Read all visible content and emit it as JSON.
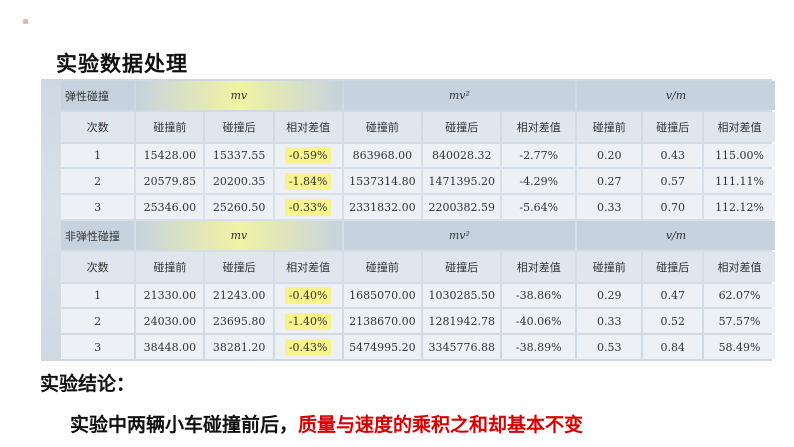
{
  "title": "实验数据处理",
  "table": {
    "sections": [
      {
        "group_label": "弹性碰撞",
        "groups": [
          "mv",
          "mv²",
          "v/m"
        ],
        "subheaders": [
          "次数",
          "碰撞前",
          "碰撞后",
          "相对差值",
          "碰撞前",
          "碰撞后",
          "相对差值",
          "碰撞前",
          "碰撞后",
          "相对差值"
        ],
        "rows": [
          [
            "1",
            "15428.00",
            "15337.55",
            "-0.59%",
            "863968.00",
            "840028.32",
            "-2.77%",
            "0.20",
            "0.43",
            "115.00%"
          ],
          [
            "2",
            "20579.85",
            "20200.35",
            "-1.84%",
            "1537314.80",
            "1471395.20",
            "-4.29%",
            "0.27",
            "0.57",
            "111.11%"
          ],
          [
            "3",
            "25346.00",
            "25260.50",
            "-0.33%",
            "2331832.00",
            "2200382.59",
            "-5.64%",
            "0.33",
            "0.70",
            "112.12%"
          ]
        ]
      },
      {
        "group_label": "非弹性碰撞",
        "groups": [
          "mv",
          "mv²",
          "v/m"
        ],
        "subheaders": [
          "次数",
          "碰撞前",
          "碰撞后",
          "相对差值",
          "碰撞前",
          "碰撞后",
          "相对差值",
          "碰撞前",
          "碰撞后",
          "相对差值"
        ],
        "rows": [
          [
            "1",
            "21330.00",
            "21243.00",
            "-0.40%",
            "1685070.00",
            "1030285.50",
            "-38.86%",
            "0.29",
            "0.47",
            "62.07%"
          ],
          [
            "2",
            "24030.00",
            "23695.80",
            "-1.40%",
            "2138670.00",
            "1281942.78",
            "-40.06%",
            "0.33",
            "0.52",
            "57.57%"
          ],
          [
            "3",
            "38448.00",
            "38281.20",
            "-0.43%",
            "5474995.20",
            "3345776.88",
            "-38.89%",
            "0.53",
            "0.84",
            "58.49%"
          ]
        ]
      }
    ]
  },
  "conclusion": {
    "label": "实验结论：",
    "text_part1": "实验中两辆小车碰撞前后，",
    "text_part2": "质量与速度的乘积之和却基本不变"
  },
  "colors": {
    "highlight": "#f6f48a",
    "conclusion_red": "#d90000"
  }
}
